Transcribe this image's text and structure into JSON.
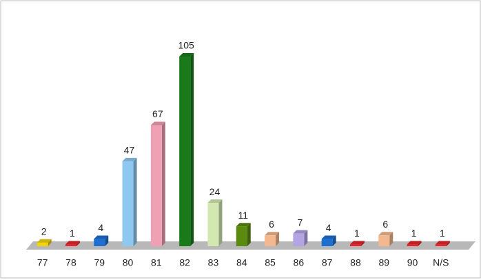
{
  "chart_data": {
    "type": "bar",
    "categories": [
      "77",
      "78",
      "79",
      "80",
      "81",
      "82",
      "83",
      "84",
      "85",
      "86",
      "87",
      "88",
      "89",
      "90",
      "N/S"
    ],
    "values": [
      2,
      1,
      4,
      47,
      67,
      105,
      24,
      11,
      6,
      7,
      4,
      1,
      6,
      1,
      1
    ],
    "colors": [
      "#f2d40a",
      "#e3262b",
      "#1f6fd0",
      "#8ec8f0",
      "#f0a0b4",
      "#1a7a1a",
      "#d2e8b0",
      "#5a8a10",
      "#f4b890",
      "#b4a4e4",
      "#1f6fd0",
      "#e3262b",
      "#f4b890",
      "#e3262b",
      "#e3262b"
    ]
  }
}
